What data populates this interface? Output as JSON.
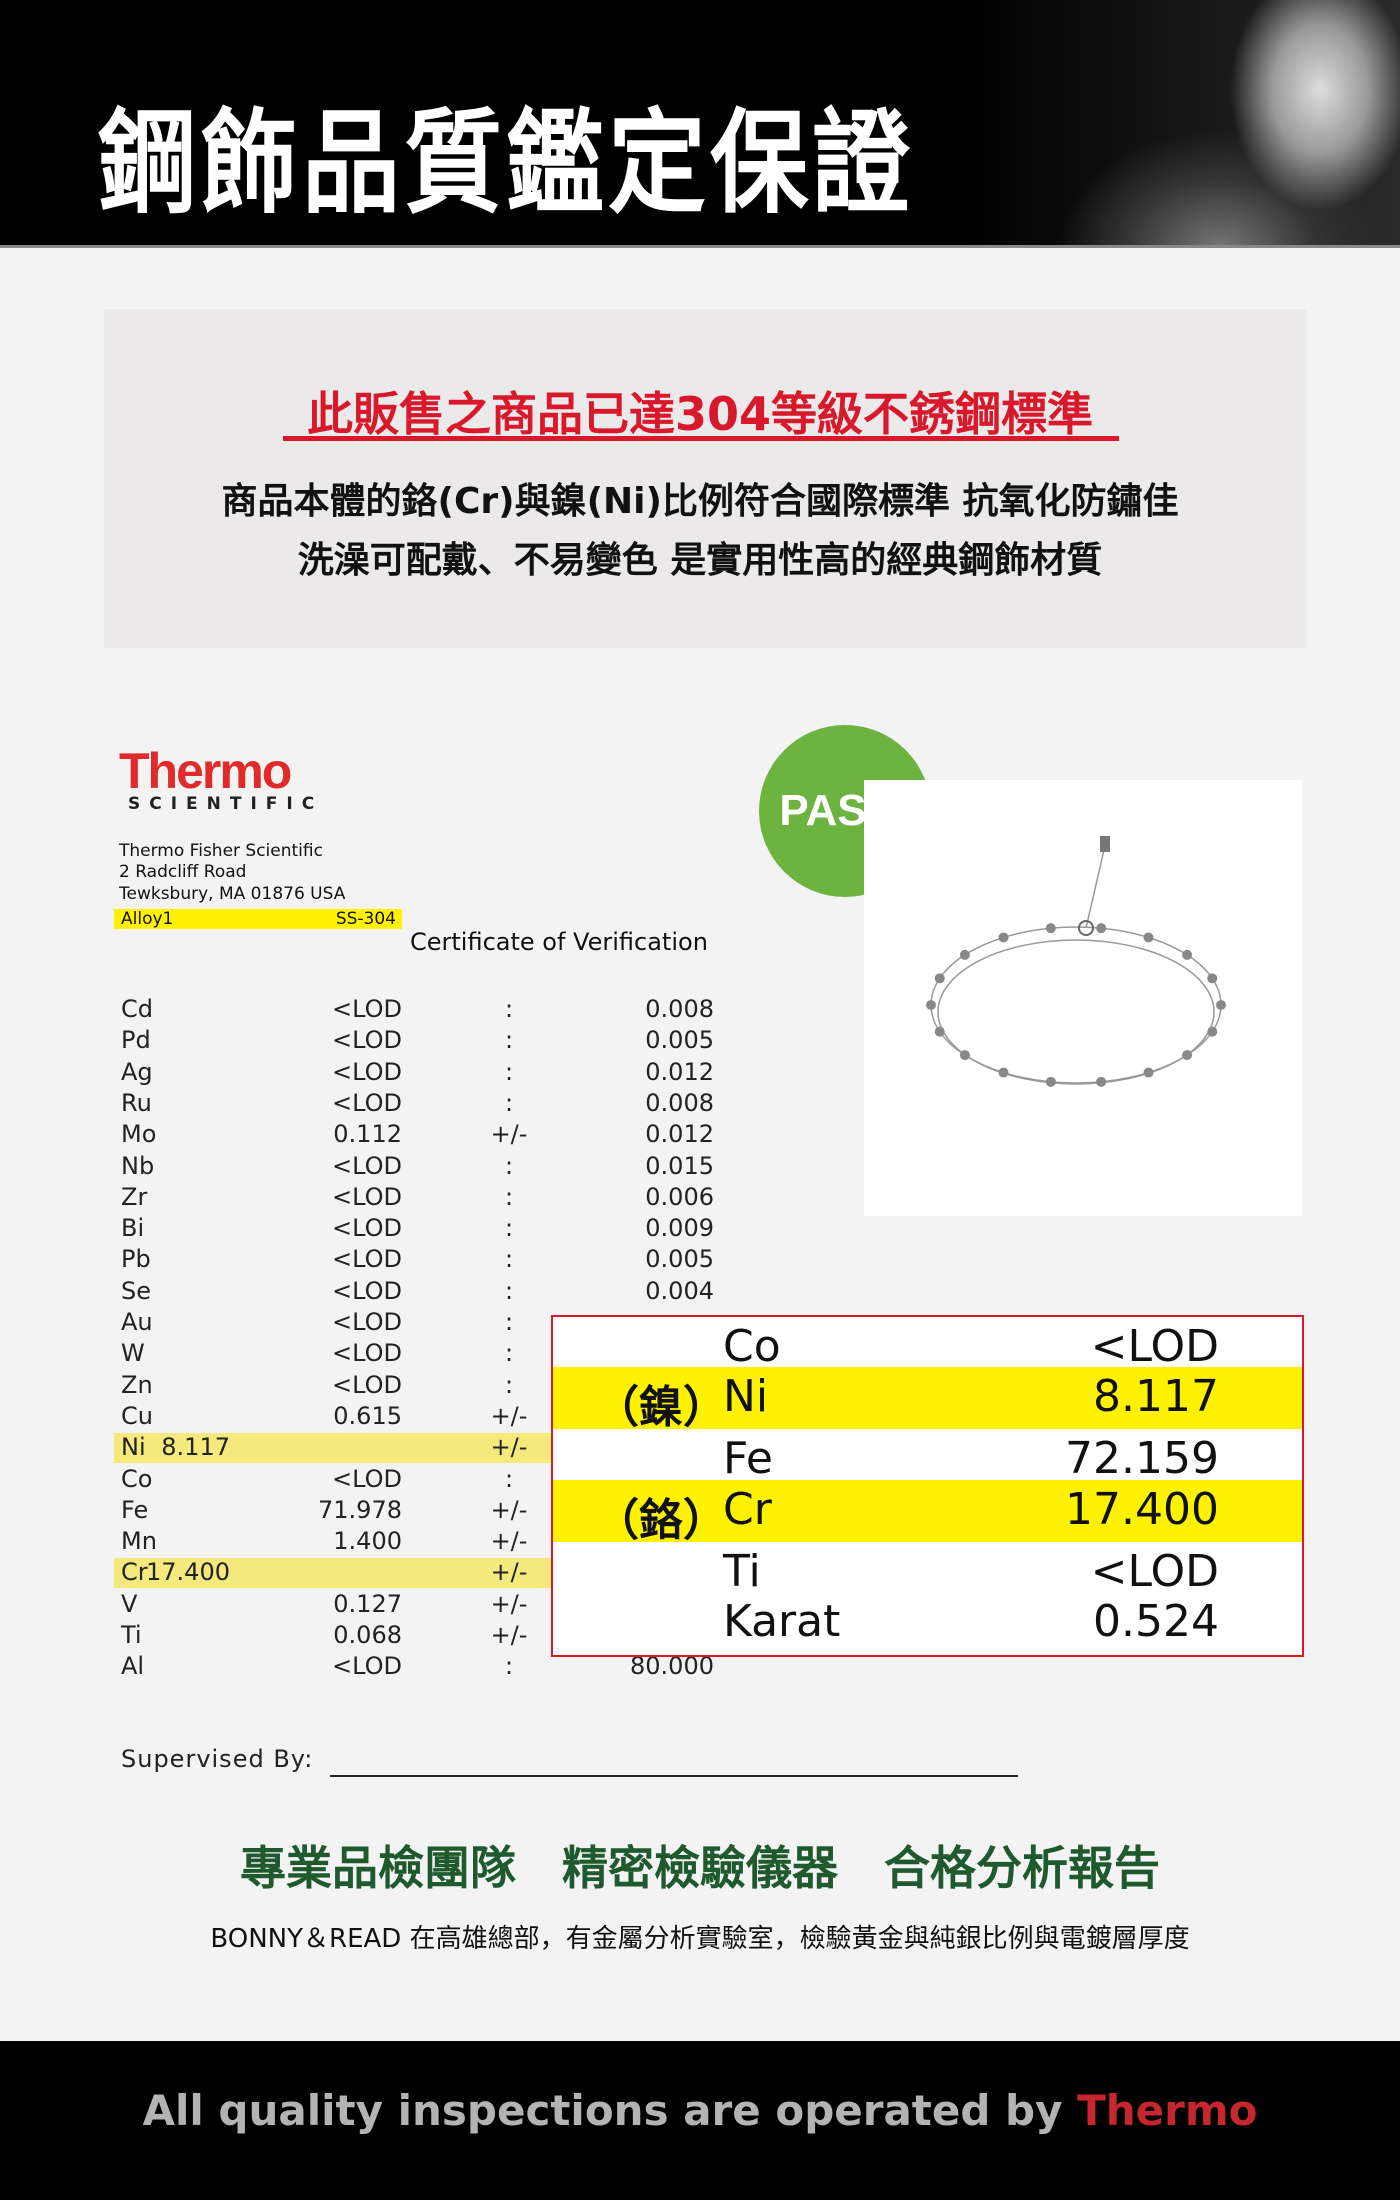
{
  "header": {
    "title": "鋼飾品質鑑定保證"
  },
  "intro": {
    "headline": "此販售之商品已達304等級不銹鋼標準",
    "line1": "商品本體的鉻(Cr)與鎳(Ni)比例符合國際標準 抗氧化防鏽佳",
    "line2": "洗澡可配戴、不易變色 是實用性高的經典鋼飾材質"
  },
  "certificate": {
    "logo": {
      "name": "Thermo",
      "sub": "SCIENTIFIC"
    },
    "address": [
      "Thermo Fisher Scientific",
      "2 Radcliff Road",
      "Tewksbury, MA 01876 USA"
    ],
    "alloy": {
      "label": "Alloy1",
      "grade": "SS-304"
    },
    "title": "Certificate of Verification",
    "rows": [
      {
        "el": "Cd",
        "val": "<LOD",
        "sign": ":",
        "err": "0.008"
      },
      {
        "el": "Pd",
        "val": "<LOD",
        "sign": ":",
        "err": "0.005"
      },
      {
        "el": "Ag",
        "val": "<LOD",
        "sign": ":",
        "err": "0.012"
      },
      {
        "el": "Ru",
        "val": "<LOD",
        "sign": ":",
        "err": "0.008"
      },
      {
        "el": "Mo",
        "val": "0.112",
        "sign": "+/-",
        "err": "0.012"
      },
      {
        "el": "Nb",
        "val": "<LOD",
        "sign": ":",
        "err": "0.015"
      },
      {
        "el": "Zr",
        "val": "<LOD",
        "sign": ":",
        "err": "0.006"
      },
      {
        "el": "Bi",
        "val": "<LOD",
        "sign": ":",
        "err": "0.009"
      },
      {
        "el": "Pb",
        "val": "<LOD",
        "sign": ":",
        "err": "0.005"
      },
      {
        "el": "Se",
        "val": "<LOD",
        "sign": ":",
        "err": "0.004"
      },
      {
        "el": "Au",
        "val": "<LOD",
        "sign": ":",
        "err": ""
      },
      {
        "el": "W",
        "val": "<LOD",
        "sign": ":",
        "err": ""
      },
      {
        "el": "Zn",
        "val": "<LOD",
        "sign": ":",
        "err": ""
      },
      {
        "el": "Cu",
        "val": "0.615",
        "sign": "+/-",
        "err": ""
      },
      {
        "el": "Ni",
        "val": "8.117",
        "sign": "+/-",
        "err": "",
        "highlight": true
      },
      {
        "el": "Co",
        "val": "<LOD",
        "sign": ":",
        "err": ""
      },
      {
        "el": "Fe",
        "val": "71.978",
        "sign": "+/-",
        "err": ""
      },
      {
        "el": "Mn",
        "val": "1.400",
        "sign": "+/-",
        "err": ""
      },
      {
        "el": "Cr",
        "val": "17.400",
        "sign": "+/-",
        "err": "",
        "highlight": true
      },
      {
        "el": "V",
        "val": "0.127",
        "sign": "+/-",
        "err": ""
      },
      {
        "el": "Ti",
        "val": "0.068",
        "sign": "+/-",
        "err": ""
      },
      {
        "el": "Al",
        "val": "<LOD",
        "sign": ":",
        "err": "80.000"
      }
    ],
    "supervised_label": "Supervised By:"
  },
  "pass_badge": "PASS!",
  "summary": [
    {
      "cn": "",
      "el": "Co",
      "val": "<LOD"
    },
    {
      "cn": "（鎳）",
      "el": "Ni",
      "val": "8.117",
      "highlight": true
    },
    {
      "cn": "",
      "el": "Fe",
      "val": "72.159"
    },
    {
      "cn": "（鉻）",
      "el": "Cr",
      "val": "17.400",
      "highlight": true
    },
    {
      "cn": "",
      "el": "Ti",
      "val": "<LOD"
    },
    {
      "cn": "",
      "el": "Karat",
      "val": "0.524"
    }
  ],
  "features": "專業品檢團隊　精密檢驗儀器　合格分析報告",
  "lab_note": "BONNY＆READ 在高雄總部，有金屬分析實驗室，檢驗黃金與純銀比例與電鍍層厚度",
  "footer": {
    "text": "All quality inspections are operated by ",
    "brand": "Thermo"
  },
  "colors": {
    "red": "#d8192b",
    "yellow": "#fff200",
    "green": "#1f5a2f",
    "pass": "#6cb33f"
  }
}
